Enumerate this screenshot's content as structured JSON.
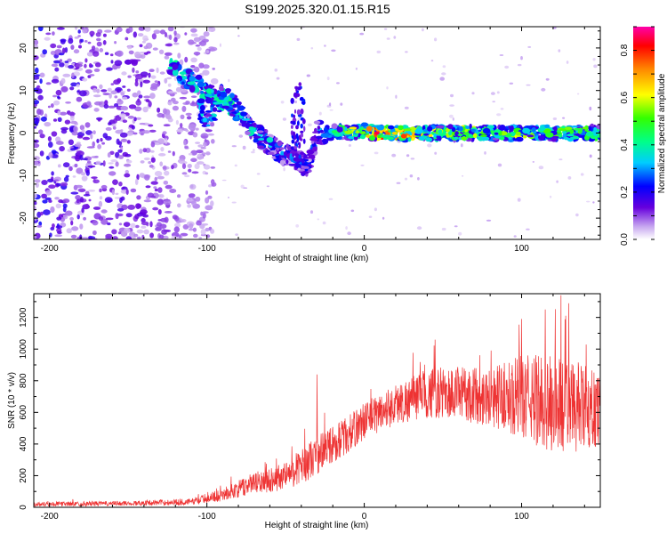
{
  "title": "S199.2025.320.01.15.R15",
  "chart_data": [
    {
      "type": "heatmap",
      "xlabel": "Height of straight line (km)",
      "ylabel": "Frequency (Hz)",
      "xlim": [
        -210,
        150
      ],
      "ylim": [
        -25,
        25
      ],
      "x_ticks": [
        "-200",
        "-100",
        "0",
        "100"
      ],
      "y_ticks": [
        "-20",
        "-10",
        "0",
        "10",
        "20"
      ],
      "colorbar": {
        "label": "Normalized spectral amplitude",
        "range": [
          0,
          0.9
        ],
        "ticks": [
          "0.0",
          "0.2",
          "0.4",
          "0.6",
          "0.8"
        ]
      },
      "signal_track": [
        {
          "x": -125,
          "f": 16,
          "amp": 0.35
        },
        {
          "x": -110,
          "f": 12,
          "amp": 0.4
        },
        {
          "x": -90,
          "f": 9,
          "amp": 0.5
        },
        {
          "x": -80,
          "f": 5,
          "amp": 0.45
        },
        {
          "x": -100,
          "f": 2,
          "amp": 0.35
        },
        {
          "x": -70,
          "f": 0,
          "amp": 0.4
        },
        {
          "x": -55,
          "f": -4,
          "amp": 0.35
        },
        {
          "x": -45,
          "f": -6,
          "amp": 0.3
        },
        {
          "x": -35,
          "f": -8,
          "amp": 0.25
        },
        {
          "x": -30,
          "f": 0,
          "amp": 0.3
        },
        {
          "x": 0,
          "f": 0.5,
          "amp": 0.7
        },
        {
          "x": 8,
          "f": 0,
          "amp": 0.85
        },
        {
          "x": 50,
          "f": 0,
          "amp": 0.6
        },
        {
          "x": 100,
          "f": 0,
          "amp": 0.6
        },
        {
          "x": 150,
          "f": 0,
          "amp": 0.5
        }
      ]
    },
    {
      "type": "line",
      "xlabel": "Height of straight line (km)",
      "ylabel": "SNR (10 * v/v)",
      "xlim": [
        -210,
        150
      ],
      "ylim": [
        0,
        1350
      ],
      "x_ticks": [
        "-200",
        "-100",
        "0",
        "100"
      ],
      "y_ticks": [
        "0",
        "200",
        "400",
        "600",
        "800",
        "1000",
        "1200"
      ],
      "color": "#ee3333",
      "envelope": {
        "x": [
          -210,
          -150,
          -110,
          -90,
          -70,
          -50,
          -40,
          -30,
          -20,
          -10,
          0,
          20,
          40,
          60,
          80,
          100,
          120,
          140,
          150
        ],
        "mean": [
          20,
          25,
          35,
          80,
          150,
          200,
          260,
          330,
          400,
          460,
          550,
          650,
          720,
          720,
          700,
          700,
          650,
          620,
          620
        ],
        "spread": [
          15,
          15,
          20,
          40,
          70,
          90,
          110,
          130,
          120,
          120,
          120,
          130,
          160,
          170,
          190,
          260,
          330,
          280,
          220
        ]
      },
      "peaks": [
        {
          "x": -30,
          "y": 840
        },
        {
          "x": 45,
          "y": 1060
        },
        {
          "x": 100,
          "y": 1190
        },
        {
          "x": 115,
          "y": 1250
        },
        {
          "x": 125,
          "y": 1340
        },
        {
          "x": 130,
          "y": 1290
        }
      ]
    }
  ]
}
